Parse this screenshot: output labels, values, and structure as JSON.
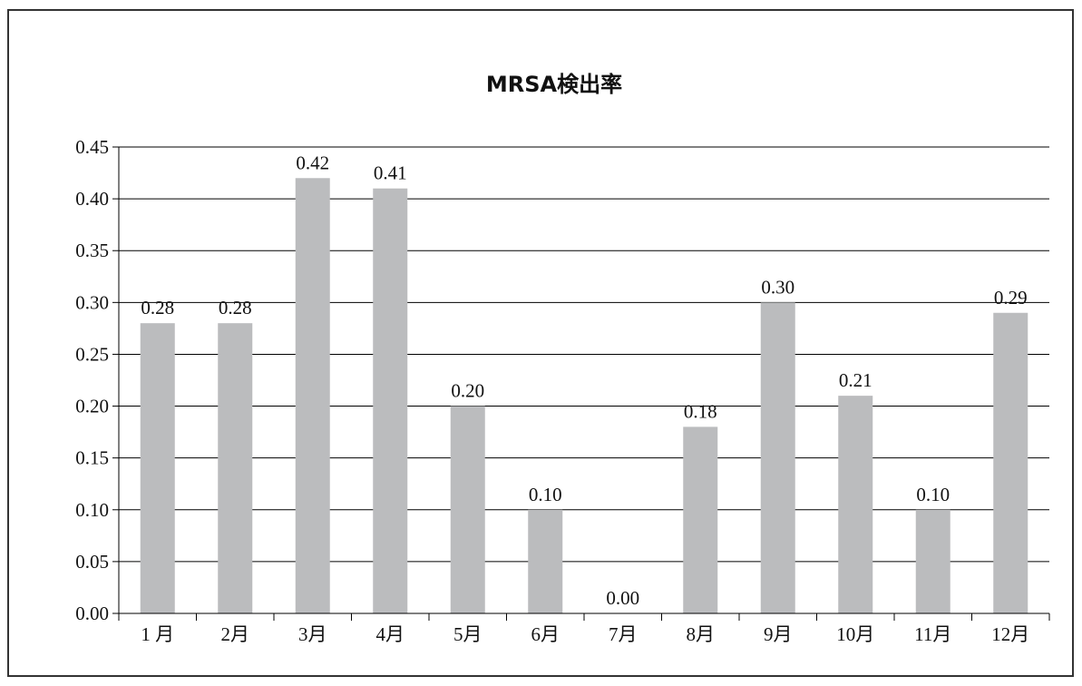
{
  "chart_data": {
    "type": "bar",
    "title": "MRSA検出率",
    "xlabel": "",
    "ylabel": "",
    "categories": [
      "1 月",
      "2月",
      "3月",
      "4月",
      "5月",
      "6月",
      "7月",
      "8月",
      "9月",
      "10月",
      "11月",
      "12月"
    ],
    "values": [
      0.28,
      0.28,
      0.42,
      0.41,
      0.2,
      0.1,
      0.0,
      0.18,
      0.3,
      0.21,
      0.1,
      0.29
    ],
    "value_labels": [
      "0.28",
      "0.28",
      "0.42",
      "0.41",
      "0.20",
      "0.10",
      "0.00",
      "0.18",
      "0.30",
      "0.21",
      "0.10",
      "0.29"
    ],
    "y_ticks": [
      "0.00",
      "0.05",
      "0.10",
      "0.15",
      "0.20",
      "0.25",
      "0.30",
      "0.35",
      "0.40",
      "0.45"
    ],
    "ylim": [
      0,
      0.45
    ],
    "grid": true,
    "legend": "none",
    "colors": {
      "bar": "#bbbcbe",
      "grid": "#000000",
      "text": "#111111"
    }
  }
}
